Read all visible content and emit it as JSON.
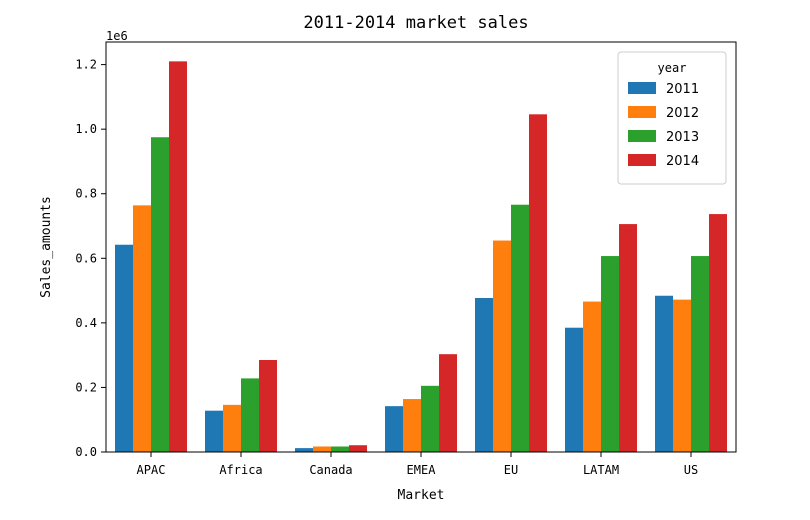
{
  "chart_data": {
    "type": "bar",
    "title": "2011-2014 market sales",
    "xlabel": "Market",
    "ylabel": "Sales_amounts",
    "offset_label": "1e6",
    "categories": [
      "APAC",
      "Africa",
      "Canada",
      "EMEA",
      "EU",
      "LATAM",
      "US"
    ],
    "series": [
      {
        "name": "2011",
        "color": "#1f77b4",
        "values": [
          0.642,
          0.128,
          0.012,
          0.142,
          0.477,
          0.385,
          0.484
        ]
      },
      {
        "name": "2012",
        "color": "#ff7f0e",
        "values": [
          0.764,
          0.146,
          0.017,
          0.164,
          0.655,
          0.466,
          0.472
        ]
      },
      {
        "name": "2013",
        "color": "#2ca02c",
        "values": [
          0.975,
          0.228,
          0.017,
          0.205,
          0.766,
          0.607,
          0.607
        ]
      },
      {
        "name": "2014",
        "color": "#d62728",
        "values": [
          1.21,
          0.285,
          0.021,
          0.303,
          1.046,
          0.706,
          0.737
        ]
      }
    ],
    "yticks": [
      "0.0",
      "0.2",
      "0.4",
      "0.6",
      "0.8",
      "1.0",
      "1.2"
    ],
    "ylim": [
      0,
      1.27
    ],
    "legend": {
      "title": "year",
      "position": "top-right"
    },
    "grid": false
  }
}
